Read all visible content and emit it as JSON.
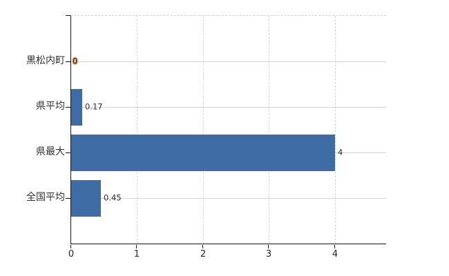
{
  "chart_data": {
    "type": "bar",
    "orientation": "horizontal",
    "title": "",
    "xlabel": "",
    "ylabel": "",
    "categories": [
      "黒松内町",
      "県平均",
      "県最大",
      "全国平均"
    ],
    "values": [
      0,
      0.17,
      4,
      0.45
    ],
    "value_labels": [
      "0",
      "0.17",
      "4",
      "0.45"
    ],
    "highlighted_index": 0,
    "x_ticks": [
      0,
      1,
      2,
      3,
      4
    ],
    "x_tick_labels": [
      "0",
      "1",
      "2",
      "3",
      "4"
    ],
    "xlim": [
      0,
      4.78
    ],
    "grid": true,
    "legend": "none",
    "colors": {
      "bar": "#3e6da6",
      "highlight_outline": "#e8923a",
      "axis": "#111111",
      "vertical_grid": "#d6d6d6",
      "horizontal_grid": "#cdd7ca",
      "label_text": "#333333",
      "value_text": "#2b2b2b",
      "background": "#ffffff"
    }
  }
}
